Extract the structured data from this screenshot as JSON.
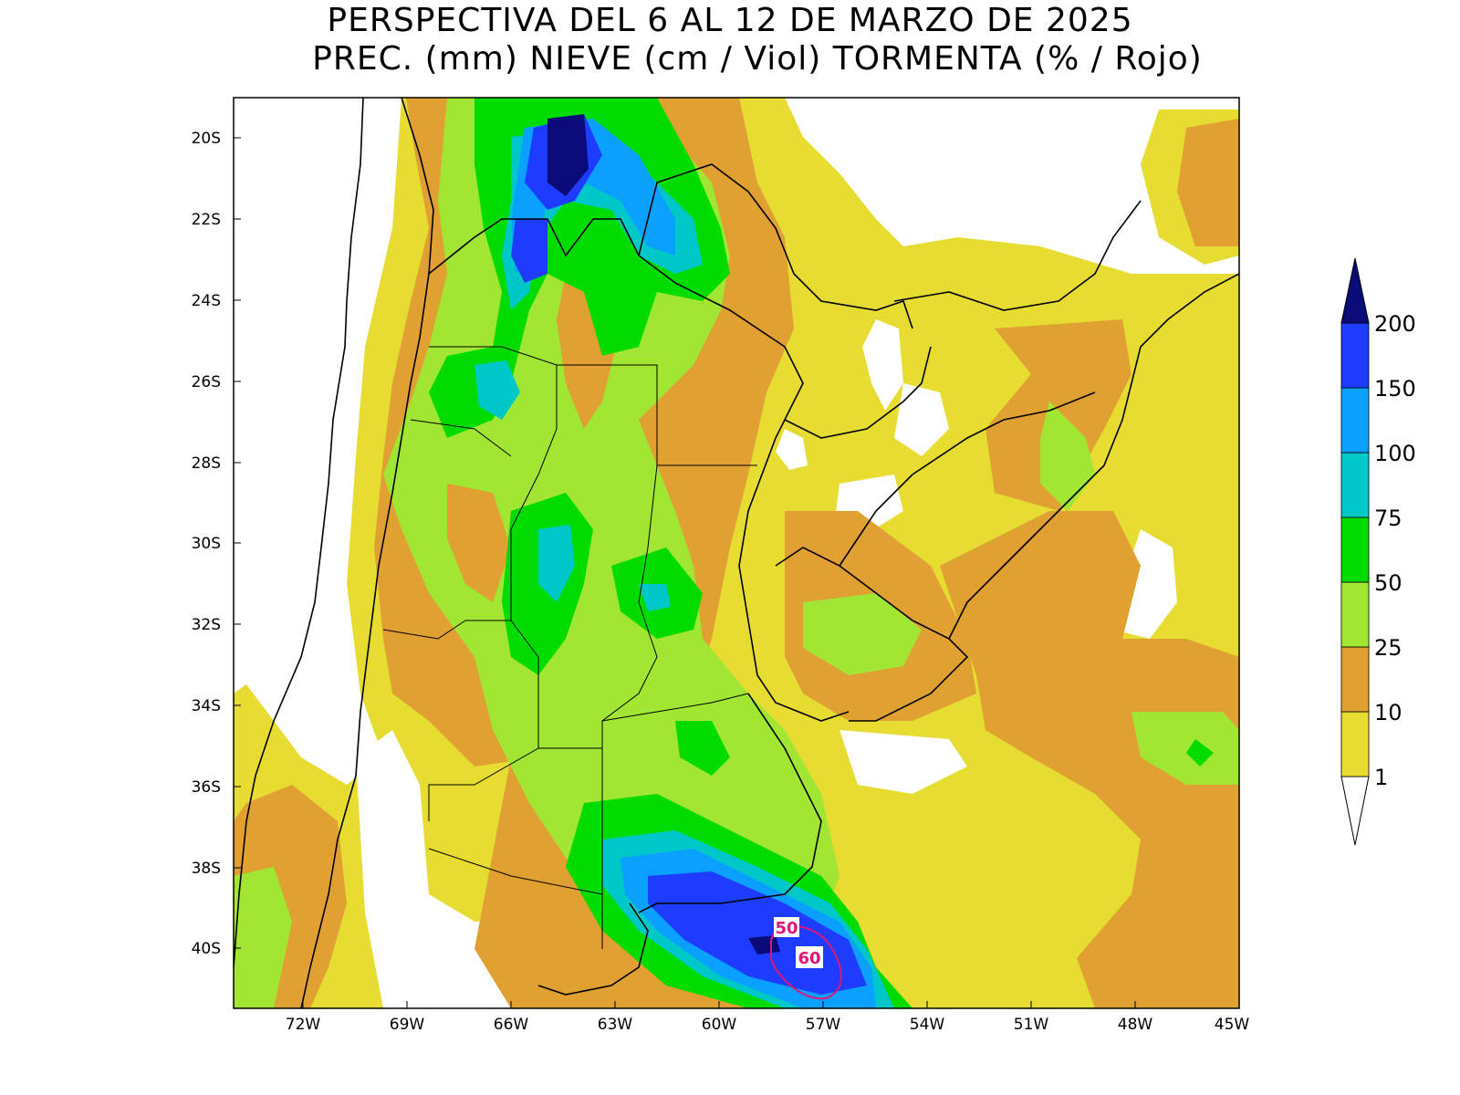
{
  "title": {
    "line1": "PERSPECTIVA DEL 6 AL 12 DE MARZO DE 2025",
    "line2": "PREC. (mm) NIEVE (cm / Viol) TORMENTA (% / Rojo)"
  },
  "axes": {
    "lat_labels": [
      "20S",
      "22S",
      "24S",
      "26S",
      "28S",
      "30S",
      "32S",
      "34S",
      "36S",
      "38S",
      "40S"
    ],
    "lon_labels": [
      "72W",
      "69W",
      "66W",
      "63W",
      "60W",
      "57W",
      "54W",
      "51W",
      "48W",
      "45W"
    ]
  },
  "colorbar": {
    "levels": [
      "1",
      "10",
      "25",
      "50",
      "75",
      "100",
      "150",
      "200"
    ],
    "colors": [
      "#e6dc32",
      "#e1a032",
      "#a0e632",
      "#00dc00",
      "#00c8c8",
      "#0aa0ff",
      "#1e3cff",
      "#0a0a78"
    ],
    "below_color": "#ffffff"
  },
  "storm_contours": {
    "color": "#e0157a",
    "labels": [
      "50",
      "60"
    ]
  }
}
